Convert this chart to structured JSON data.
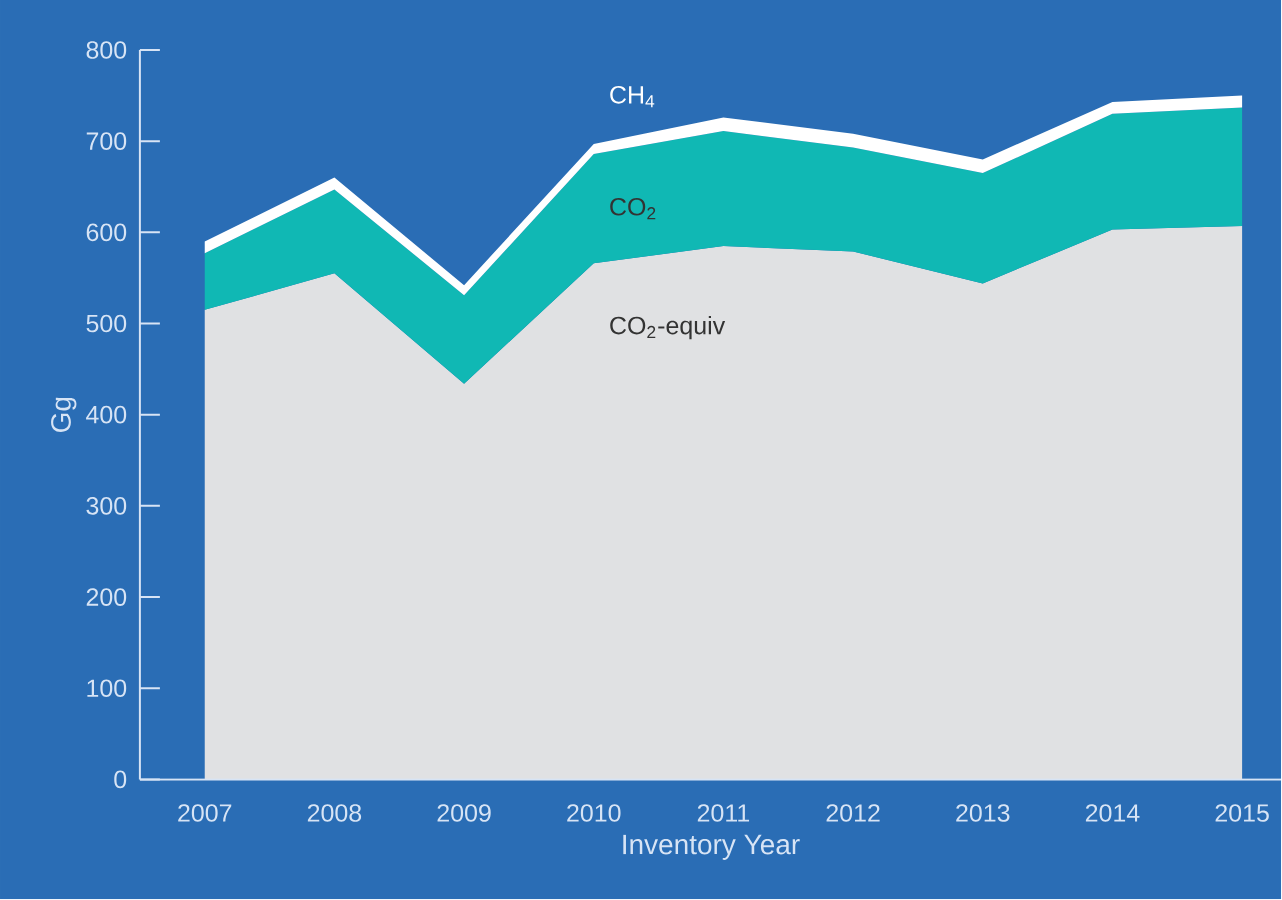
{
  "chart_data": {
    "type": "area",
    "xlabel": "Inventory Year",
    "ylabel": "Gg",
    "stacked": true,
    "categories": [
      "2007",
      "2008",
      "2009",
      "2010",
      "2011",
      "2012",
      "2013",
      "2014",
      "2015"
    ],
    "series": [
      {
        "name": "CO$_{2}$-equiv",
        "color": "#e0e1e3",
        "values": [
          515,
          555,
          434,
          566,
          585,
          579,
          544,
          603,
          607
        ]
      },
      {
        "name": "CO$_{2}$",
        "color": "#10b8b4",
        "values": [
          62,
          92,
          97,
          120,
          126,
          114,
          121,
          127,
          130
        ]
      },
      {
        "name": "CH$_{4}$",
        "color": "#ffffff",
        "values": [
          13,
          13,
          11,
          11,
          15,
          15,
          15,
          13,
          13
        ]
      }
    ],
    "ylim": [
      0,
      800
    ],
    "yticks": [
      0,
      100,
      200,
      300,
      400,
      500,
      600,
      700,
      800
    ]
  }
}
